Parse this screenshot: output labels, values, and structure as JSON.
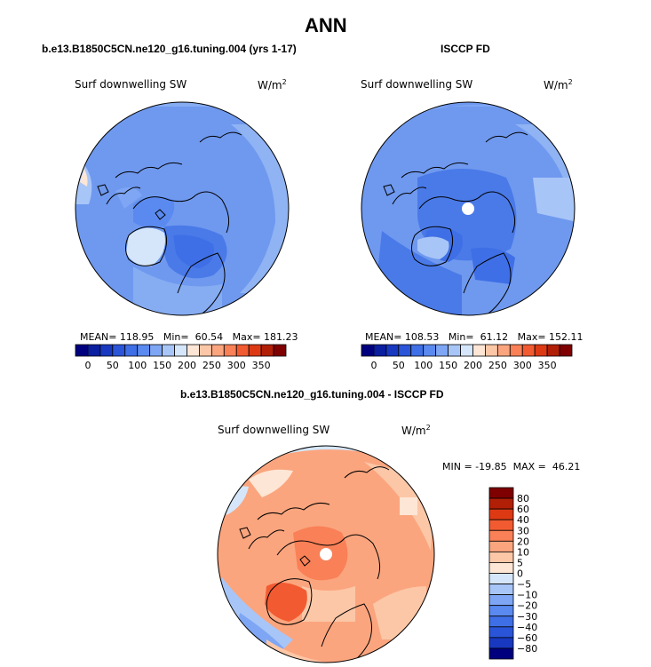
{
  "figure": {
    "main_title": "ANN",
    "left_title": "b.e13.B1850C5CN.ne120_g16.tuning.004 (yrs 1-17)",
    "right_title": "ISCCP FD",
    "diff_title": "b.e13.B1850C5CN.ne120_g16.tuning.004 - ISCCP FD"
  },
  "left_panel": {
    "variable": "Surf downwelling SW",
    "units": "W/m",
    "units_exp": "2",
    "stats": "MEAN= 118.95   Min=  60.54   Max= 181.23"
  },
  "right_panel": {
    "variable": "Surf downwelling SW",
    "units": "W/m",
    "units_exp": "2",
    "stats": "MEAN= 108.53   Min=  61.12   Max= 152.11"
  },
  "diff_panel": {
    "variable": "Surf downwelling SW",
    "units": "W/m",
    "units_exp": "2",
    "stats": "MIN = -19.85  MAX =  46.21"
  },
  "colorbar_abs": {
    "labels": [
      "0",
      "50",
      "100",
      "150",
      "200",
      "250",
      "300",
      "350"
    ],
    "colors": [
      "#00007f",
      "#0a1ea0",
      "#1838c0",
      "#2a55d8",
      "#3f6fe6",
      "#5a8af0",
      "#7ea6f4",
      "#a8c5f7",
      "#d5e6fa",
      "#fde6d5",
      "#fcc7a7",
      "#fba57e",
      "#f98057",
      "#f25b31",
      "#dd3a14",
      "#b21f07",
      "#7f0000"
    ]
  },
  "colorbar_diff": {
    "labels": [
      "80",
      "60",
      "40",
      "30",
      "20",
      "10",
      "5",
      "0",
      "−5",
      "−10",
      "−20",
      "−30",
      "−40",
      "−60",
      "−80"
    ],
    "colors": [
      "#7f0000",
      "#b21f07",
      "#dd3a14",
      "#f25b31",
      "#f98057",
      "#fba57e",
      "#fcc7a7",
      "#fde6d5",
      "#d5e6fa",
      "#a8c5f7",
      "#7ea6f4",
      "#5a8af0",
      "#3f6fe6",
      "#2a55d8",
      "#1838c0",
      "#00007f"
    ]
  }
}
